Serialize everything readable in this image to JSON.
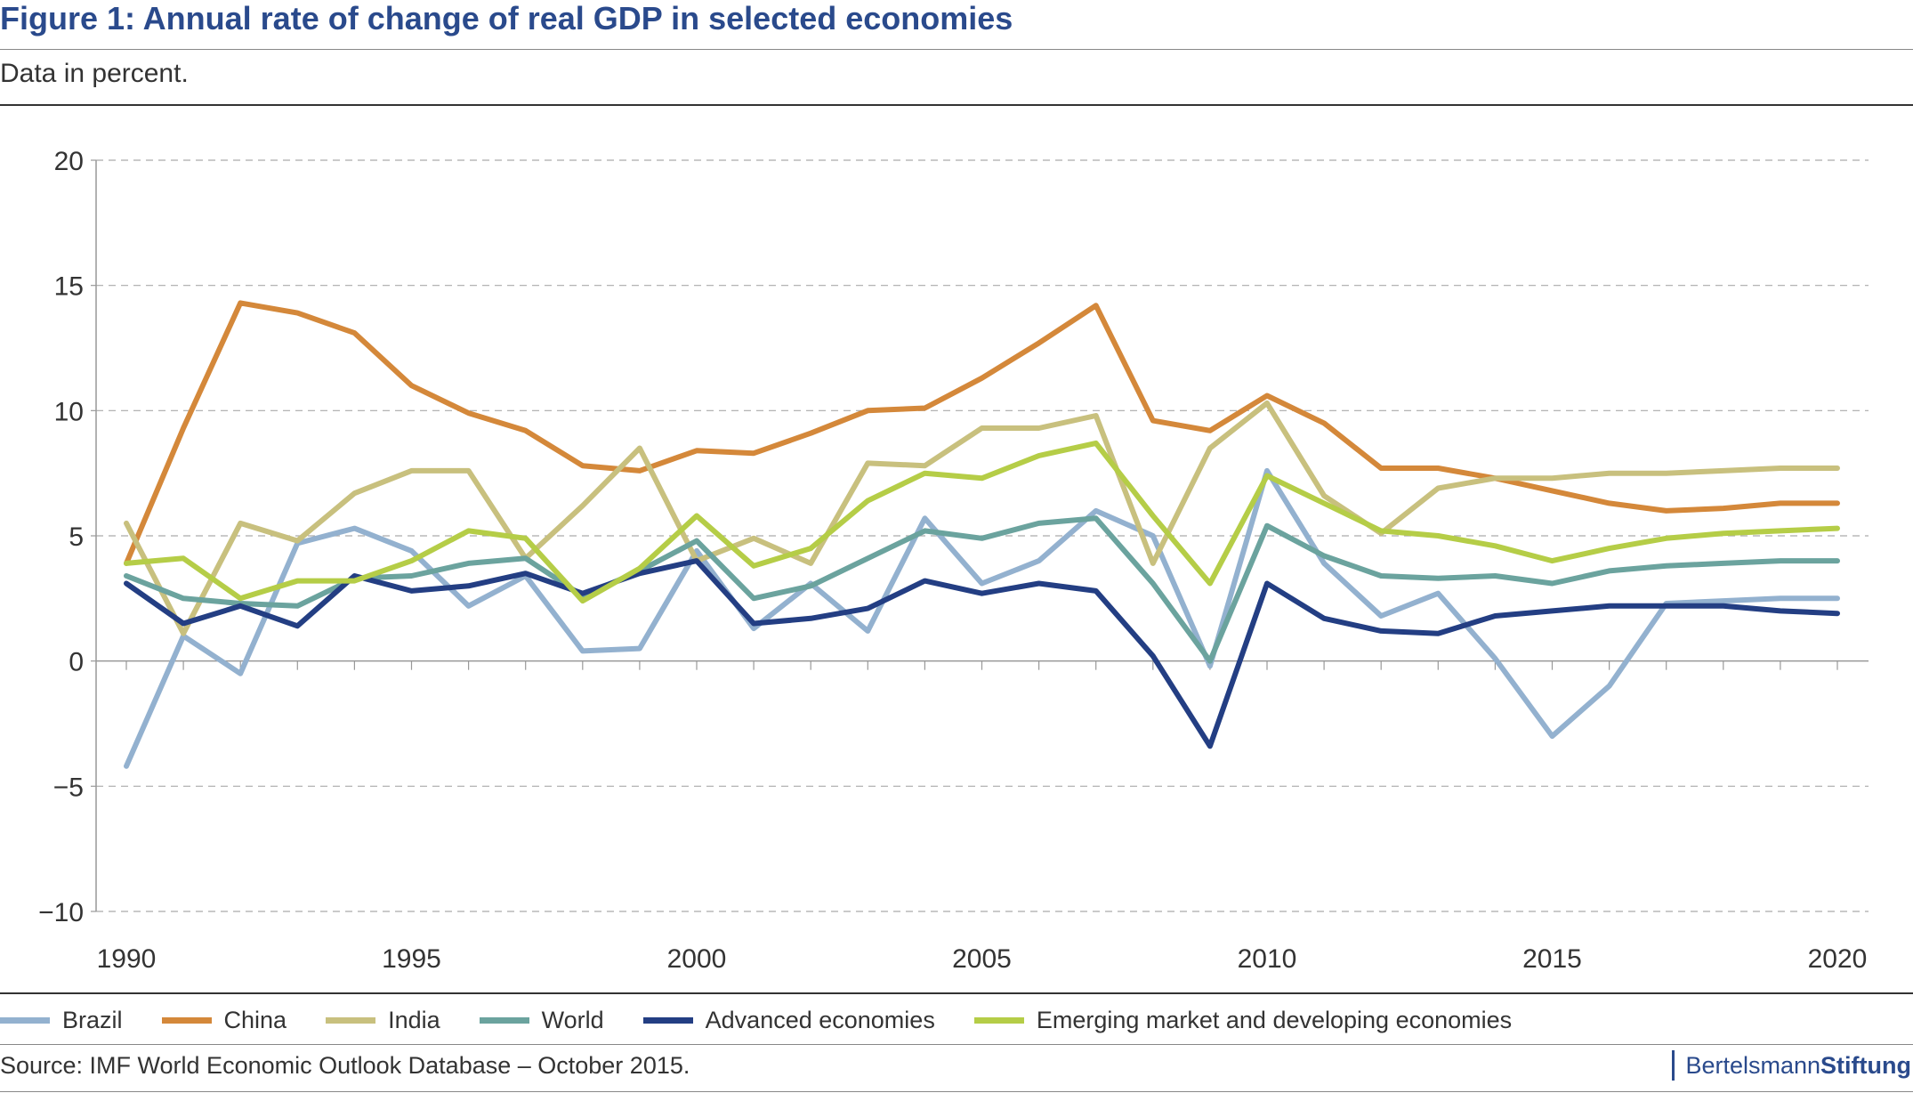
{
  "header": {
    "title": "Figure 1: Annual rate of change of real GDP in selected economies",
    "subtitle": "Data in percent."
  },
  "footer": {
    "source": "Source: IMF World Economic Outlook Database – October 2015.",
    "brand_part1": "Bertelsmann",
    "brand_part2": "Stiftung"
  },
  "chart_data": {
    "type": "line",
    "title": "Figure 1: Annual rate of change of real GDP in selected economies",
    "subtitle": "Data in percent.",
    "xlim": [
      1990,
      2020
    ],
    "ylim": [
      -10,
      20
    ],
    "x_ticks": [
      1990,
      1995,
      2000,
      2005,
      2010,
      2015,
      2020
    ],
    "y_ticks": [
      -10,
      -5,
      0,
      5,
      10,
      15,
      20
    ],
    "y_tick_labels": [
      "−10",
      "−5",
      "0",
      "5",
      "10",
      "15",
      "20"
    ],
    "grid": "horizontal dashed",
    "legend_position": "bottom",
    "x": [
      1990,
      1991,
      1992,
      1993,
      1994,
      1995,
      1996,
      1997,
      1998,
      1999,
      2000,
      2001,
      2002,
      2003,
      2004,
      2005,
      2006,
      2007,
      2008,
      2009,
      2010,
      2011,
      2012,
      2013,
      2014,
      2015,
      2016,
      2017,
      2018,
      2019,
      2020
    ],
    "series": [
      {
        "name": "Brazil",
        "color": "#93b1cf",
        "values": [
          -4.2,
          1.0,
          -0.5,
          4.7,
          5.3,
          4.4,
          2.2,
          3.4,
          0.4,
          0.5,
          4.4,
          1.3,
          3.1,
          1.2,
          5.7,
          3.1,
          4.0,
          6.0,
          5.0,
          -0.2,
          7.6,
          3.9,
          1.8,
          2.7,
          0.1,
          -3.0,
          -1.0,
          2.3,
          2.4,
          2.5,
          2.5
        ]
      },
      {
        "name": "China",
        "color": "#d4883a",
        "values": [
          3.9,
          9.3,
          14.3,
          13.9,
          13.1,
          11.0,
          9.9,
          9.2,
          7.8,
          7.6,
          8.4,
          8.3,
          9.1,
          10.0,
          10.1,
          11.3,
          12.7,
          14.2,
          9.6,
          9.2,
          10.6,
          9.5,
          7.7,
          7.7,
          7.3,
          6.8,
          6.3,
          6.0,
          6.1,
          6.3,
          6.3
        ]
      },
      {
        "name": "India",
        "color": "#c8c07e",
        "values": [
          5.5,
          1.1,
          5.5,
          4.8,
          6.7,
          7.6,
          7.6,
          4.1,
          6.2,
          8.5,
          4.0,
          4.9,
          3.9,
          7.9,
          7.8,
          9.3,
          9.3,
          9.8,
          3.9,
          8.5,
          10.3,
          6.6,
          5.1,
          6.9,
          7.3,
          7.3,
          7.5,
          7.5,
          7.6,
          7.7,
          7.7
        ]
      },
      {
        "name": "World",
        "color": "#6ba39e",
        "values": [
          3.4,
          2.5,
          2.3,
          2.2,
          3.3,
          3.4,
          3.9,
          4.1,
          2.6,
          3.6,
          4.8,
          2.5,
          3.0,
          4.1,
          5.2,
          4.9,
          5.5,
          5.7,
          3.1,
          0.0,
          5.4,
          4.2,
          3.4,
          3.3,
          3.4,
          3.1,
          3.6,
          3.8,
          3.9,
          4.0,
          4.0
        ]
      },
      {
        "name": "Advanced economies",
        "color": "#233e83",
        "values": [
          3.1,
          1.5,
          2.2,
          1.4,
          3.4,
          2.8,
          3.0,
          3.5,
          2.7,
          3.5,
          4.0,
          1.5,
          1.7,
          2.1,
          3.2,
          2.7,
          3.1,
          2.8,
          0.2,
          -3.4,
          3.1,
          1.7,
          1.2,
          1.1,
          1.8,
          2.0,
          2.2,
          2.2,
          2.2,
          2.0,
          1.9
        ]
      },
      {
        "name": "Emerging market and developing economies",
        "color": "#b5cd47",
        "values": [
          3.9,
          4.1,
          2.5,
          3.2,
          3.2,
          4.0,
          5.2,
          4.9,
          2.4,
          3.7,
          5.8,
          3.8,
          4.5,
          6.4,
          7.5,
          7.3,
          8.2,
          8.7,
          5.8,
          3.1,
          7.4,
          6.3,
          5.2,
          5.0,
          4.6,
          4.0,
          4.5,
          4.9,
          5.1,
          5.2,
          5.3
        ]
      }
    ]
  }
}
